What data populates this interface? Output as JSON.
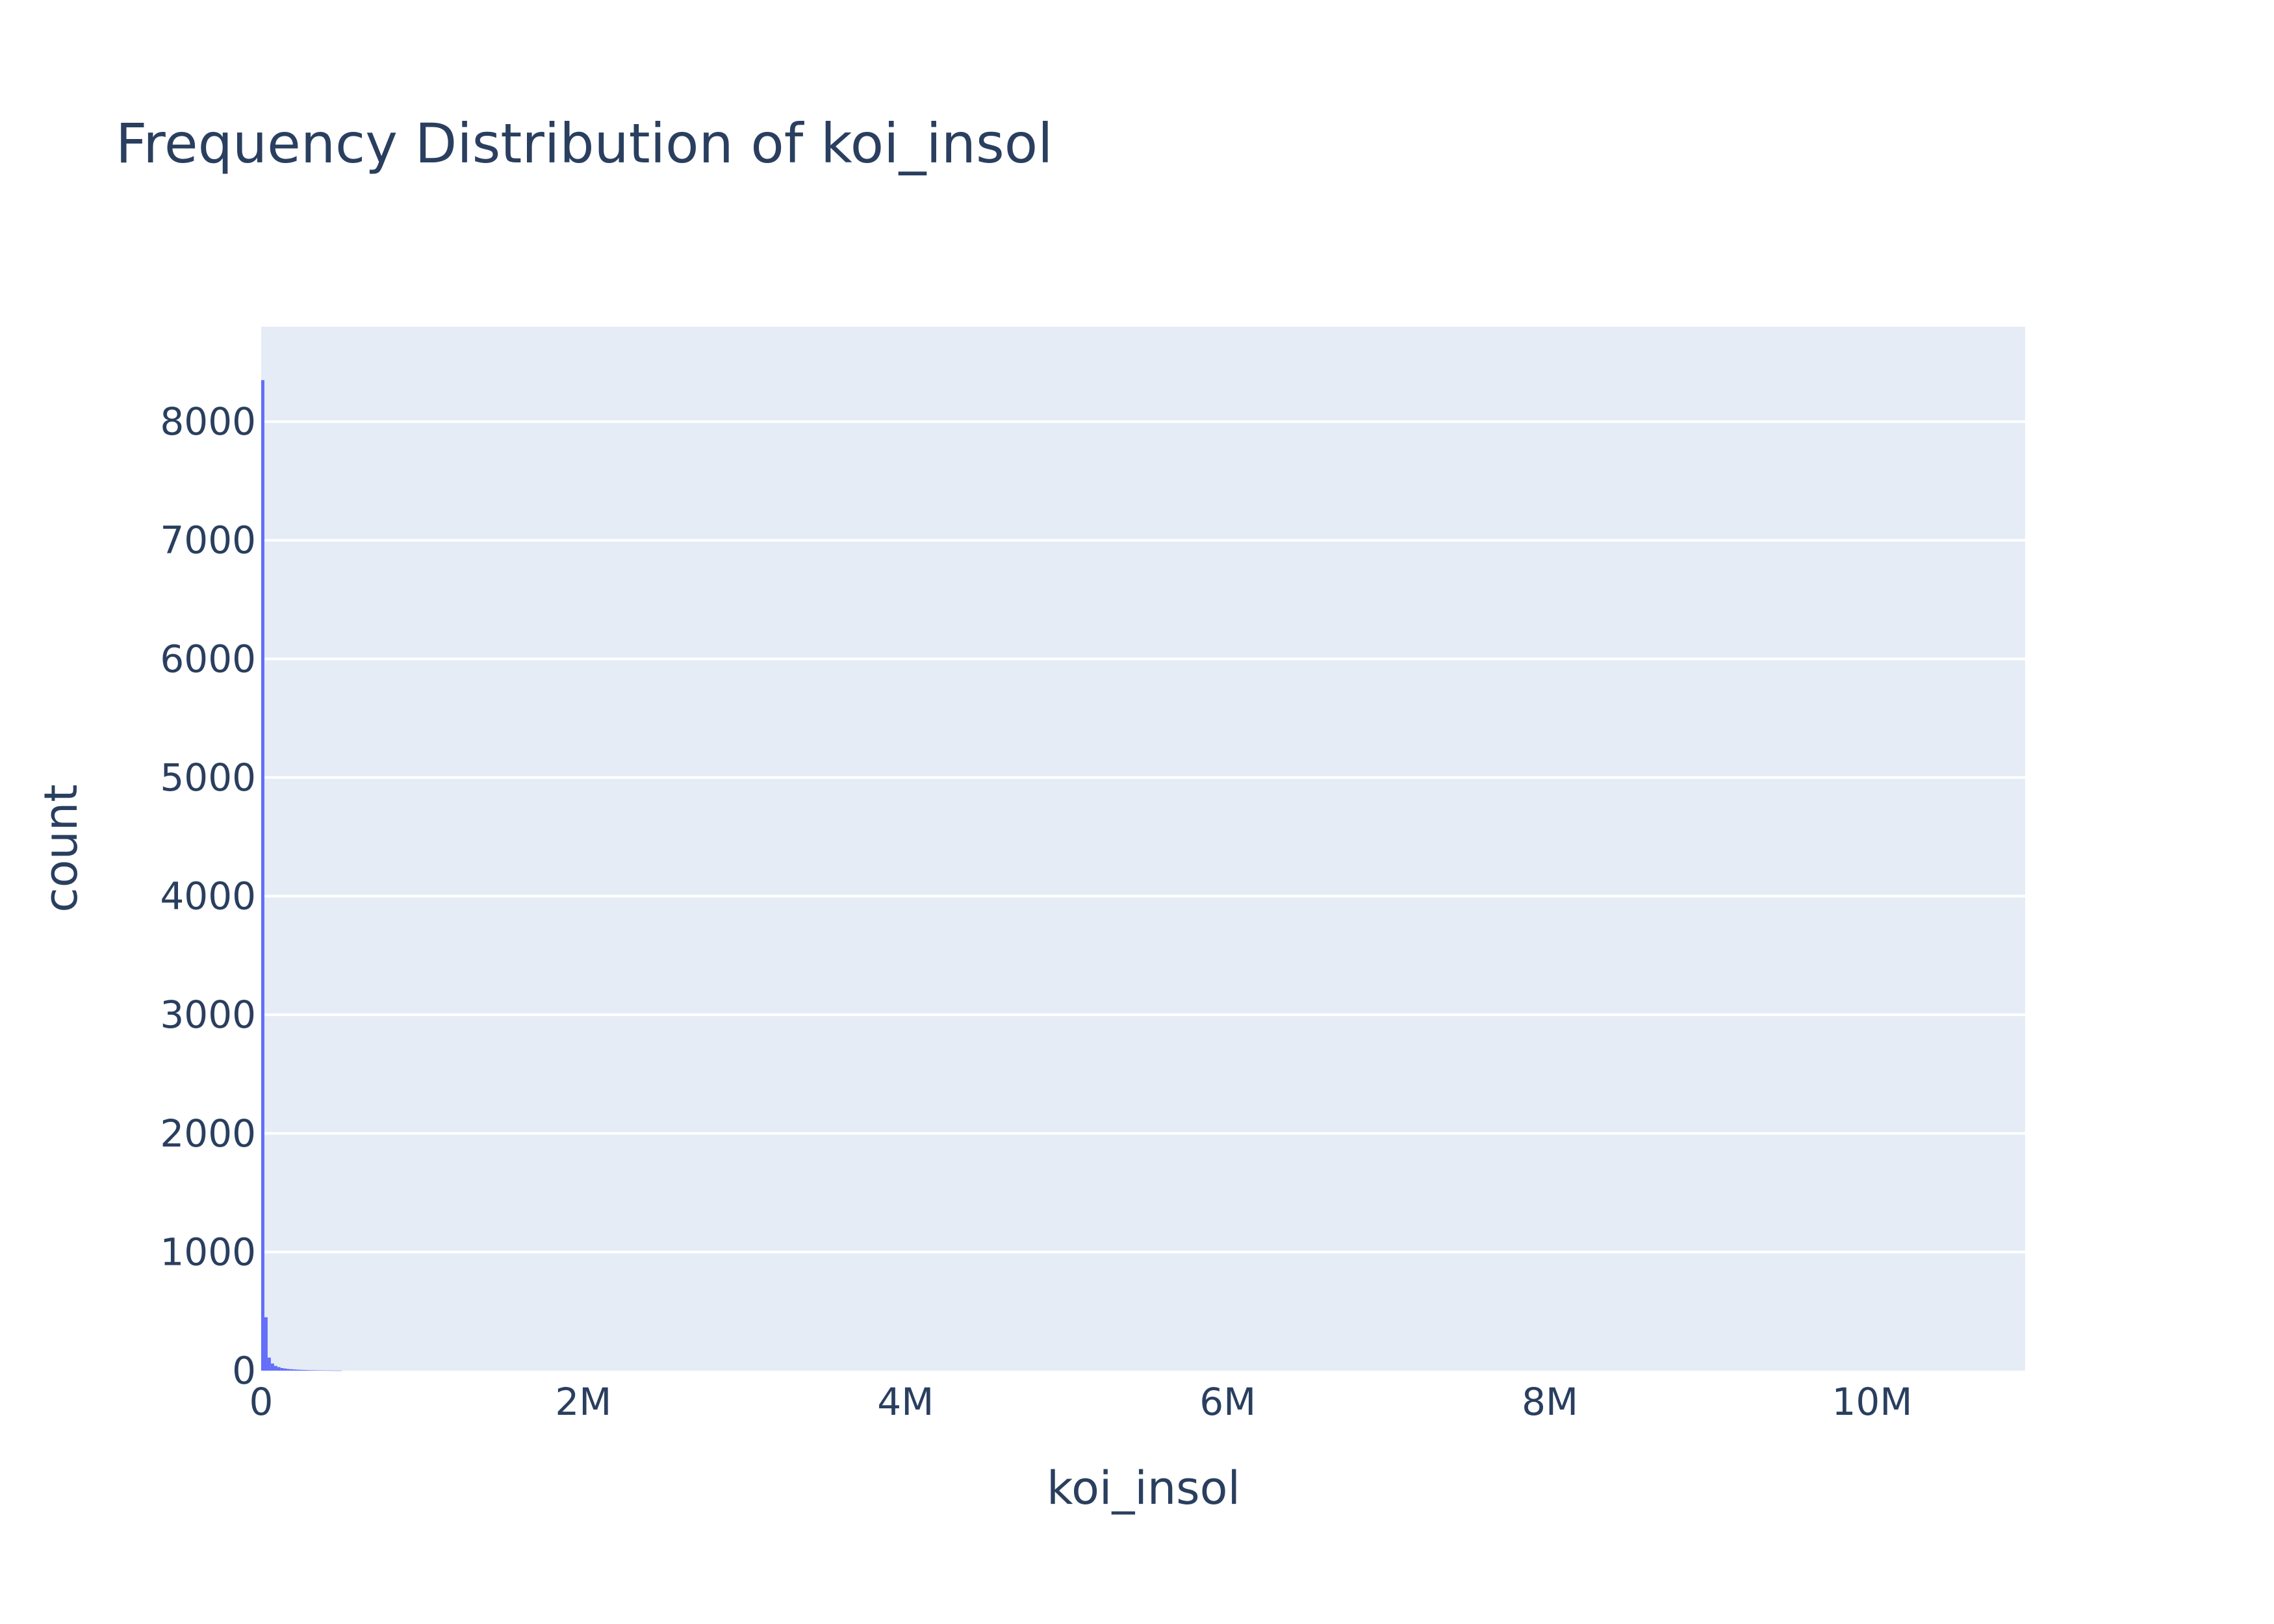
{
  "chart_data": {
    "type": "bar",
    "title": "Frequency Distribution of koi_insol",
    "xlabel": "koi_insol",
    "ylabel": "count",
    "xlim": [
      0,
      10950000
    ],
    "ylim": [
      0,
      8800
    ],
    "x_ticks": [
      {
        "value": 0,
        "label": "0"
      },
      {
        "value": 2000000,
        "label": "2M"
      },
      {
        "value": 4000000,
        "label": "4M"
      },
      {
        "value": 6000000,
        "label": "6M"
      },
      {
        "value": 8000000,
        "label": "8M"
      },
      {
        "value": 10000000,
        "label": "10M"
      }
    ],
    "y_ticks": [
      {
        "value": 0,
        "label": "0"
      },
      {
        "value": 1000,
        "label": "1000"
      },
      {
        "value": 2000,
        "label": "2000"
      },
      {
        "value": 3000,
        "label": "3000"
      },
      {
        "value": 4000,
        "label": "4000"
      },
      {
        "value": 5000,
        "label": "5000"
      },
      {
        "value": 6000,
        "label": "6000"
      },
      {
        "value": 7000,
        "label": "7000"
      },
      {
        "value": 8000,
        "label": "8000"
      }
    ],
    "grid": true,
    "bin_width": 20000,
    "bins": [
      {
        "x0": 0,
        "x1": 20000,
        "count": 8350
      },
      {
        "x0": 20000,
        "x1": 40000,
        "count": 450
      },
      {
        "x0": 40000,
        "x1": 60000,
        "count": 110
      },
      {
        "x0": 60000,
        "x1": 80000,
        "count": 60
      },
      {
        "x0": 80000,
        "x1": 100000,
        "count": 40
      },
      {
        "x0": 100000,
        "x1": 120000,
        "count": 30
      },
      {
        "x0": 120000,
        "x1": 140000,
        "count": 22
      },
      {
        "x0": 140000,
        "x1": 160000,
        "count": 18
      },
      {
        "x0": 160000,
        "x1": 180000,
        "count": 14
      },
      {
        "x0": 180000,
        "x1": 200000,
        "count": 12
      },
      {
        "x0": 200000,
        "x1": 220000,
        "count": 10
      },
      {
        "x0": 220000,
        "x1": 240000,
        "count": 8
      },
      {
        "x0": 240000,
        "x1": 260000,
        "count": 7
      },
      {
        "x0": 260000,
        "x1": 280000,
        "count": 6
      },
      {
        "x0": 280000,
        "x1": 300000,
        "count": 5
      },
      {
        "x0": 300000,
        "x1": 320000,
        "count": 4
      },
      {
        "x0": 320000,
        "x1": 340000,
        "count": 4
      },
      {
        "x0": 340000,
        "x1": 360000,
        "count": 3
      },
      {
        "x0": 360000,
        "x1": 380000,
        "count": 3
      },
      {
        "x0": 380000,
        "x1": 400000,
        "count": 2
      },
      {
        "x0": 400000,
        "x1": 420000,
        "count": 2
      },
      {
        "x0": 420000,
        "x1": 440000,
        "count": 2
      },
      {
        "x0": 440000,
        "x1": 460000,
        "count": 1
      },
      {
        "x0": 460000,
        "x1": 480000,
        "count": 1
      },
      {
        "x0": 480000,
        "x1": 500000,
        "count": 1
      }
    ],
    "colors": {
      "bar": "#636efa",
      "plot_bg": "#e5ecf6",
      "grid": "#ffffff",
      "text": "#2a3f5f"
    }
  }
}
